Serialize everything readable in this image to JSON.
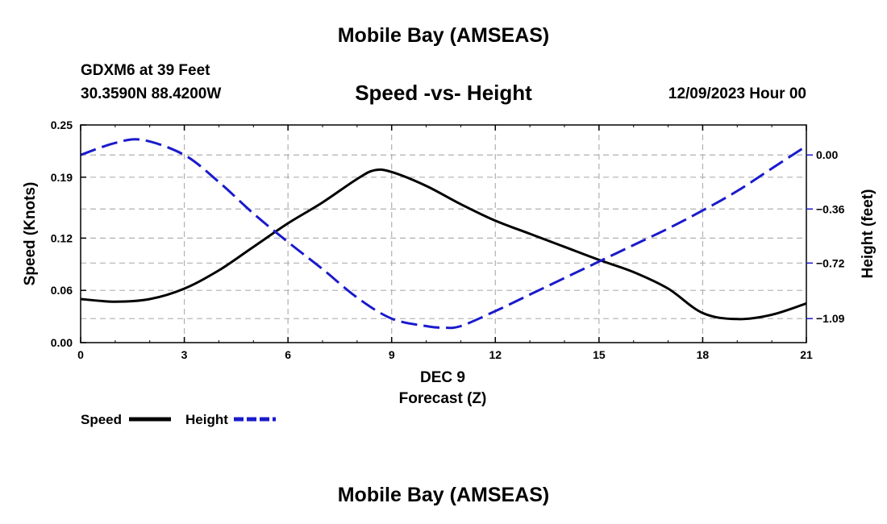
{
  "page": {
    "main_title": "Mobile Bay (AMSEAS)",
    "bottom_title": "Mobile Bay (AMSEAS)",
    "station": "GDXM6 at 39 Feet",
    "coordinates": "30.3590N  88.4200W",
    "date_hour": "12/09/2023 Hour 00"
  },
  "chart_data": {
    "type": "line",
    "title": "Speed -vs- Height",
    "xlabel_date": "DEC 9",
    "xlabel": "Forecast (Z)",
    "ylabel_left": "Speed (Knots)",
    "ylabel_right": "Height (feet)",
    "xlim": [
      0,
      21
    ],
    "ylim_left": [
      0.0,
      0.25
    ],
    "ylim_right": [
      -1.25,
      0.2
    ],
    "x_ticks": [
      0,
      3,
      6,
      9,
      12,
      15,
      18,
      21
    ],
    "x_tick_labels": [
      "0",
      "3",
      "6",
      "9",
      "12",
      "15",
      "18",
      "21"
    ],
    "y_left_ticks": [
      0.0,
      0.06,
      0.12,
      0.19,
      0.25
    ],
    "y_left_tick_labels": [
      "0.00",
      "0.06",
      "0.12",
      "0.19",
      "0.25"
    ],
    "y_right_ticks": [
      0.0,
      -0.36,
      -0.72,
      -1.09
    ],
    "y_right_tick_labels": [
      "0.00",
      "−0.36",
      "−0.72",
      "−1.09"
    ],
    "grid": true,
    "series": [
      {
        "name": "Speed",
        "axis": "left",
        "color": "#000000",
        "dash": "solid",
        "x": [
          0,
          1,
          2,
          3,
          4,
          5,
          6,
          7,
          8,
          8.5,
          9,
          10,
          11,
          12,
          13,
          14,
          15,
          16,
          17,
          18,
          19,
          20,
          21
        ],
        "values": [
          0.05,
          0.047,
          0.05,
          0.062,
          0.083,
          0.11,
          0.137,
          0.161,
          0.188,
          0.198,
          0.196,
          0.18,
          0.159,
          0.14,
          0.125,
          0.11,
          0.095,
          0.081,
          0.062,
          0.034,
          0.027,
          0.032,
          0.045
        ]
      },
      {
        "name": "Height",
        "axis": "right",
        "color": "#1a1acc",
        "dash": "dashed",
        "x": [
          0,
          1,
          1.8,
          3,
          4,
          5,
          6,
          7,
          8,
          9,
          10,
          10.5,
          11,
          12,
          13,
          14,
          15,
          16,
          17,
          18,
          19,
          20,
          21
        ],
        "values": [
          0.0,
          0.08,
          0.1,
          0.0,
          -0.18,
          -0.39,
          -0.58,
          -0.76,
          -0.95,
          -1.09,
          -1.14,
          -1.15,
          -1.14,
          -1.04,
          -0.93,
          -0.82,
          -0.71,
          -0.6,
          -0.49,
          -0.37,
          -0.24,
          -0.09,
          0.06
        ]
      }
    ],
    "legend": {
      "position": "bottom-left",
      "entries": [
        "Speed",
        "Height"
      ]
    }
  }
}
